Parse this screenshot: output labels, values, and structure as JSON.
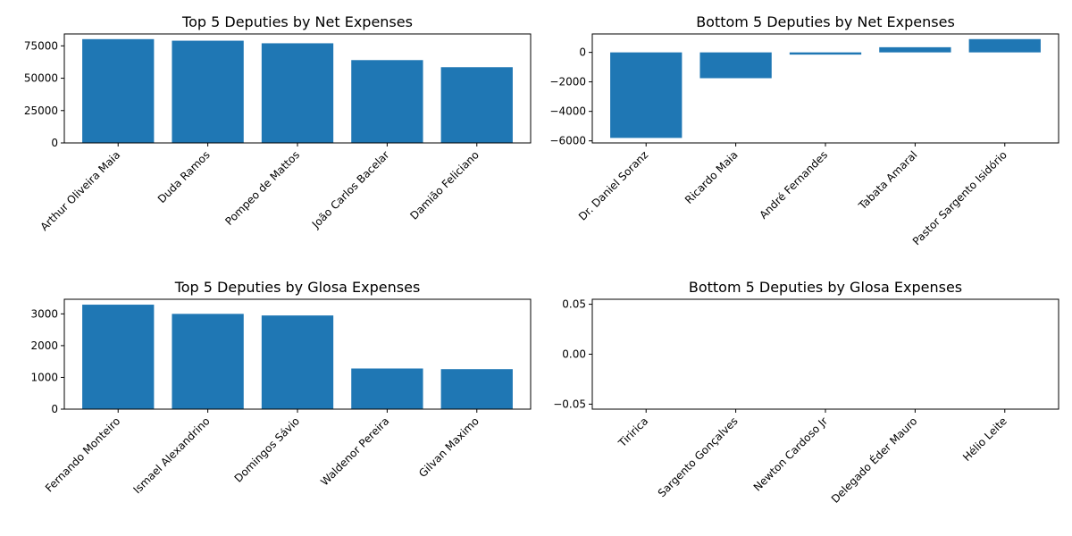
{
  "figure": {
    "bar_color": "#1f77b4"
  },
  "chart_data": [
    {
      "type": "bar",
      "title": "Top 5 Deputies by Net Expenses",
      "categories": [
        "Arthur Oliveira Maia",
        "Duda Ramos",
        "Pompeo de Mattos",
        "João Carlos Bacelar",
        "Damião Feliciano"
      ],
      "values": [
        80200,
        79000,
        77000,
        64000,
        58500
      ],
      "ylim": [
        0,
        84210
      ],
      "yticks": [
        0,
        25000,
        50000,
        75000
      ],
      "ytick_labels": [
        "0",
        "25000",
        "50000",
        "75000"
      ],
      "xlabel": "",
      "ylabel": "",
      "grid": false
    },
    {
      "type": "bar",
      "title": "Bottom 5 Deputies by Net Expenses",
      "categories": [
        "Dr. Daniel Soranz",
        "Ricardo Maia",
        "André Fernandes",
        "Tabata Amaral",
        "Pastor Sargento Isidório"
      ],
      "values": [
        -5800,
        -1750,
        -150,
        350,
        900
      ],
      "ylim": [
        -6140,
        1250
      ],
      "yticks": [
        -6000,
        -4000,
        -2000,
        0
      ],
      "ytick_labels": [
        "−6000",
        "−4000",
        "−2000",
        "0"
      ],
      "xlabel": "",
      "ylabel": "",
      "grid": false
    },
    {
      "type": "bar",
      "title": "Top 5 Deputies by Glosa Expenses",
      "categories": [
        "Fernando Monteiro",
        "Ismael Alexandrino",
        "Domingos Sávio",
        "Waldenor Pereira",
        "Gilvan Maximo"
      ],
      "values": [
        3290,
        3000,
        2950,
        1280,
        1260
      ],
      "ylim": [
        0,
        3460
      ],
      "yticks": [
        0,
        1000,
        2000,
        3000
      ],
      "ytick_labels": [
        "0",
        "1000",
        "2000",
        "3000"
      ],
      "xlabel": "",
      "ylabel": "",
      "grid": false
    },
    {
      "type": "bar",
      "title": "Bottom 5 Deputies by Glosa Expenses",
      "categories": [
        "Tiririca",
        "Sargento Gonçalves",
        "Newton Cardoso Jr",
        "Delegado Éder Mauro",
        "Hélio Leite"
      ],
      "values": [
        0,
        0,
        0,
        0,
        0
      ],
      "ylim": [
        -0.055,
        0.055
      ],
      "yticks": [
        -0.05,
        0,
        0.05
      ],
      "ytick_labels": [
        "−0.05",
        "0.00",
        "0.05"
      ],
      "xlabel": "",
      "ylabel": "",
      "grid": false
    }
  ]
}
